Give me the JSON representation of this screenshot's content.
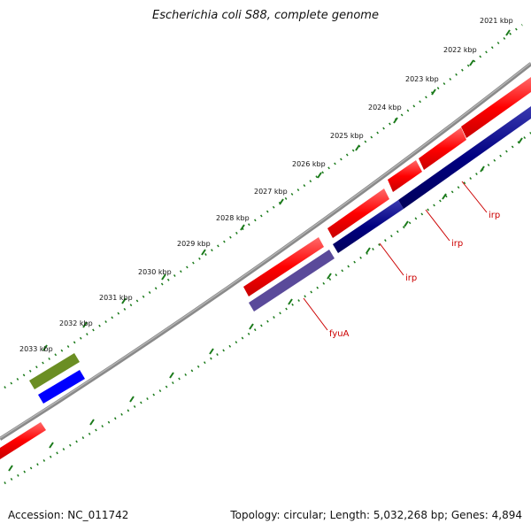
{
  "title": "Escherichia coli S88, complete genome",
  "footer": {
    "accession": "Accession: NC_011742",
    "summary": "Topology: circular; Length: 5,032,268 bp; Genes: 4,894"
  },
  "ticks": [
    {
      "label": "2021 kbp"
    },
    {
      "label": "2022 kbp"
    },
    {
      "label": "2023 kbp"
    },
    {
      "label": "2024 kbp"
    },
    {
      "label": "2025 kbp"
    },
    {
      "label": "2026 kbp"
    },
    {
      "label": "2027 kbp"
    },
    {
      "label": "2028 kbp"
    },
    {
      "label": "2029 kbp"
    },
    {
      "label": "2030 kbp"
    },
    {
      "label": "2031 kbp"
    },
    {
      "label": "2032 kbp"
    },
    {
      "label": "2033 kbp"
    }
  ],
  "gene_labels": [
    {
      "text": "irp"
    },
    {
      "text": "irp"
    },
    {
      "text": "irp"
    },
    {
      "text": "fyuA"
    }
  ],
  "colors": {
    "backbone": "#808080",
    "tick": "#1a7a1a",
    "forward_cds": "#ff0000",
    "reverse_dark": "#000080",
    "reverse_purple": "#5a4a9a",
    "reverse_blue": "#0000ff",
    "olive": "#6b8e23",
    "label": "#cc0000"
  }
}
